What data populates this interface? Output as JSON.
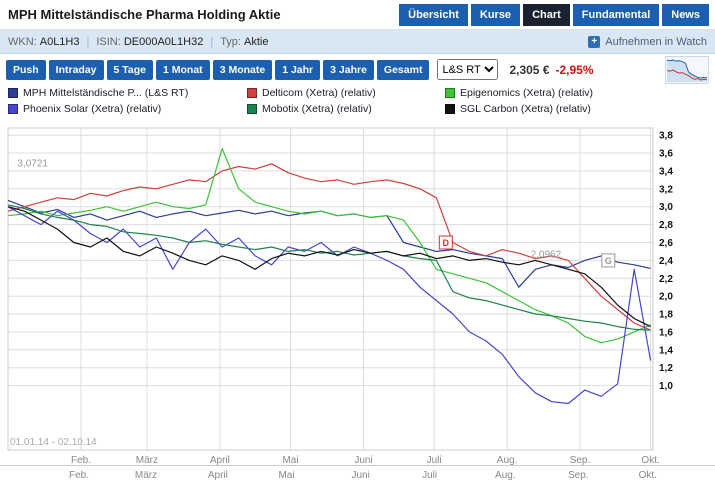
{
  "header": {
    "title": "MPH Mittelständische Pharma Holding Aktie",
    "nav": [
      {
        "label": "Übersicht",
        "active": false
      },
      {
        "label": "Kurse",
        "active": false
      },
      {
        "label": "Chart",
        "active": true
      },
      {
        "label": "Fundamental",
        "active": false
      },
      {
        "label": "News",
        "active": false
      }
    ]
  },
  "info_bar": {
    "wkn_label": "WKN:",
    "wkn": "A0L1H3",
    "isin_label": "ISIN:",
    "isin": "DE000A0L1H32",
    "typ_label": "Typ:",
    "typ": "Aktie",
    "watch": "Aufnehmen in Watch"
  },
  "toolbar": {
    "push": "Push",
    "periods": [
      "Intraday",
      "5 Tage",
      "1 Monat",
      "3 Monate",
      "1 Jahr",
      "3 Jahre",
      "Gesamt"
    ],
    "exchange": "L&S RT",
    "price": "2,305 €",
    "change": "-2,95%",
    "sparkline_blue": [
      3.02,
      3.0,
      3.03,
      2.98,
      3.0,
      2.96,
      2.9,
      2.55,
      2.45,
      2.38,
      2.33,
      2.3,
      2.32,
      2.31
    ],
    "sparkline_red": [
      2.6,
      2.58,
      2.62,
      2.55,
      2.5,
      2.52,
      2.45,
      2.4,
      2.3,
      2.25,
      2.28,
      2.22,
      2.25,
      2.23
    ]
  },
  "colors": {
    "accent_blue": "#1b5fae",
    "active_tab": "#19222e",
    "negative_red": "#cc1111",
    "grid": "#dddddd"
  },
  "chart_data": {
    "type": "line",
    "title": "",
    "range_label": "01.01.14 - 02.10.14",
    "x_axis": {
      "range_days": [
        0,
        274
      ],
      "ticks": [
        {
          "day": 31,
          "label": "Feb."
        },
        {
          "day": 59,
          "label": "März"
        },
        {
          "day": 90,
          "label": "April"
        },
        {
          "day": 120,
          "label": "Mai"
        },
        {
          "day": 151,
          "label": "Juni"
        },
        {
          "day": 181,
          "label": "Juli"
        },
        {
          "day": 212,
          "label": "Aug."
        },
        {
          "day": 243,
          "label": "Sep."
        },
        {
          "day": 273,
          "label": "Okt."
        }
      ]
    },
    "y_axis": {
      "ylim": [
        0.28,
        3.88
      ],
      "tick_values": [
        1.0,
        1.2,
        1.4,
        1.6,
        1.8,
        2.0,
        2.2,
        2.4,
        2.6,
        2.8,
        3.0,
        3.2,
        3.4,
        3.6,
        3.8
      ],
      "tick_labels": [
        "1,0",
        "1,2",
        "1,4",
        "1,6",
        "1,8",
        "2,0",
        "2,2",
        "2,4",
        "2,6",
        "2,8",
        "3,0",
        "3,2",
        "3,4",
        "3,6",
        "3,8"
      ]
    },
    "x_days": [
      0,
      7,
      14,
      21,
      28,
      35,
      42,
      49,
      56,
      63,
      70,
      77,
      84,
      91,
      98,
      105,
      112,
      119,
      126,
      133,
      140,
      147,
      154,
      161,
      168,
      175,
      182,
      189,
      196,
      203,
      210,
      217,
      224,
      231,
      238,
      245,
      252,
      259,
      266,
      273
    ],
    "series": [
      {
        "name": "MPH Mittelständische P... (L&S RT)",
        "color": "#2e3d96",
        "values": [
          3.07,
          3.0,
          2.93,
          2.97,
          2.88,
          2.92,
          2.85,
          2.9,
          2.95,
          2.88,
          2.92,
          2.95,
          2.9,
          2.93,
          2.96,
          2.92,
          2.95,
          2.9,
          2.93,
          2.95,
          2.9,
          2.92,
          2.88,
          2.9,
          2.6,
          2.55,
          2.5,
          2.52,
          2.48,
          2.45,
          2.42,
          2.1,
          2.3,
          2.35,
          2.32,
          2.4,
          2.45,
          2.38,
          2.35,
          2.31
        ]
      },
      {
        "name": "Delticom (Xetra) (relativ)",
        "color": "#cf4040",
        "values": [
          2.95,
          3.0,
          3.05,
          3.1,
          3.08,
          3.15,
          3.12,
          3.18,
          3.22,
          3.2,
          3.25,
          3.3,
          3.28,
          3.4,
          3.45,
          3.42,
          3.48,
          3.38,
          3.32,
          3.28,
          3.3,
          3.25,
          3.28,
          3.3,
          3.26,
          3.2,
          3.1,
          2.6,
          2.5,
          2.45,
          2.52,
          2.48,
          2.42,
          2.45,
          2.4,
          2.2,
          2.0,
          1.85,
          1.7,
          1.62
        ]
      },
      {
        "name": "Epigenomics (Xetra) (relativ)",
        "color": "#3cc437",
        "values": [
          2.9,
          2.92,
          2.95,
          2.9,
          2.93,
          2.96,
          3.0,
          2.95,
          3.0,
          3.05,
          3.0,
          2.98,
          3.02,
          3.65,
          3.2,
          3.05,
          3.0,
          2.95,
          2.92,
          2.95,
          2.9,
          2.92,
          2.88,
          2.9,
          2.85,
          2.6,
          2.3,
          2.25,
          2.2,
          2.15,
          2.05,
          1.95,
          1.85,
          1.78,
          1.7,
          1.55,
          1.48,
          1.52,
          1.6,
          1.68
        ]
      },
      {
        "name": "Phoenix Solar (Xetra) (relativ)",
        "color": "#4646cc",
        "values": [
          3.0,
          2.9,
          2.8,
          2.95,
          2.85,
          2.7,
          2.6,
          2.75,
          2.55,
          2.65,
          2.3,
          2.6,
          2.75,
          2.55,
          2.65,
          2.45,
          2.35,
          2.55,
          2.5,
          2.6,
          2.45,
          2.55,
          2.48,
          2.4,
          2.3,
          2.1,
          1.95,
          1.8,
          1.6,
          1.5,
          1.35,
          1.1,
          0.92,
          0.82,
          0.8,
          0.95,
          0.88,
          1.02,
          2.3,
          1.28
        ]
      },
      {
        "name": "Mobotix (Xetra) (relativ)",
        "color": "#1e8250",
        "values": [
          3.02,
          2.98,
          2.92,
          2.88,
          2.85,
          2.8,
          2.78,
          2.72,
          2.7,
          2.68,
          2.65,
          2.6,
          2.62,
          2.58,
          2.55,
          2.52,
          2.55,
          2.5,
          2.52,
          2.48,
          2.5,
          2.46,
          2.48,
          2.5,
          2.45,
          2.42,
          2.4,
          2.05,
          1.98,
          1.95,
          1.9,
          1.85,
          1.8,
          1.78,
          1.75,
          1.72,
          1.7,
          1.66,
          1.63,
          1.62
        ]
      },
      {
        "name": "SGL Carbon (Xetra) (relativ)",
        "color": "#111111",
        "values": [
          3.0,
          2.95,
          2.85,
          2.75,
          2.6,
          2.55,
          2.65,
          2.5,
          2.45,
          2.55,
          2.48,
          2.4,
          2.35,
          2.45,
          2.4,
          2.3,
          2.42,
          2.48,
          2.45,
          2.5,
          2.46,
          2.52,
          2.48,
          2.5,
          2.45,
          2.48,
          2.42,
          2.45,
          2.4,
          2.42,
          2.38,
          2.35,
          2.4,
          2.35,
          2.3,
          2.25,
          2.1,
          1.9,
          1.75,
          1.66
        ]
      }
    ],
    "annotations": [
      {
        "text": "3,0721",
        "day": 4,
        "value": 3.45,
        "color": "#999999"
      },
      {
        "text": "2,0962",
        "day": 222,
        "value": 2.43,
        "color": "#999999"
      }
    ],
    "markers": [
      {
        "label": "D",
        "day": 186,
        "value": 2.6,
        "color": "#cc3333"
      },
      {
        "label": "G",
        "day": 255,
        "value": 2.4,
        "color": "#999999"
      }
    ]
  }
}
